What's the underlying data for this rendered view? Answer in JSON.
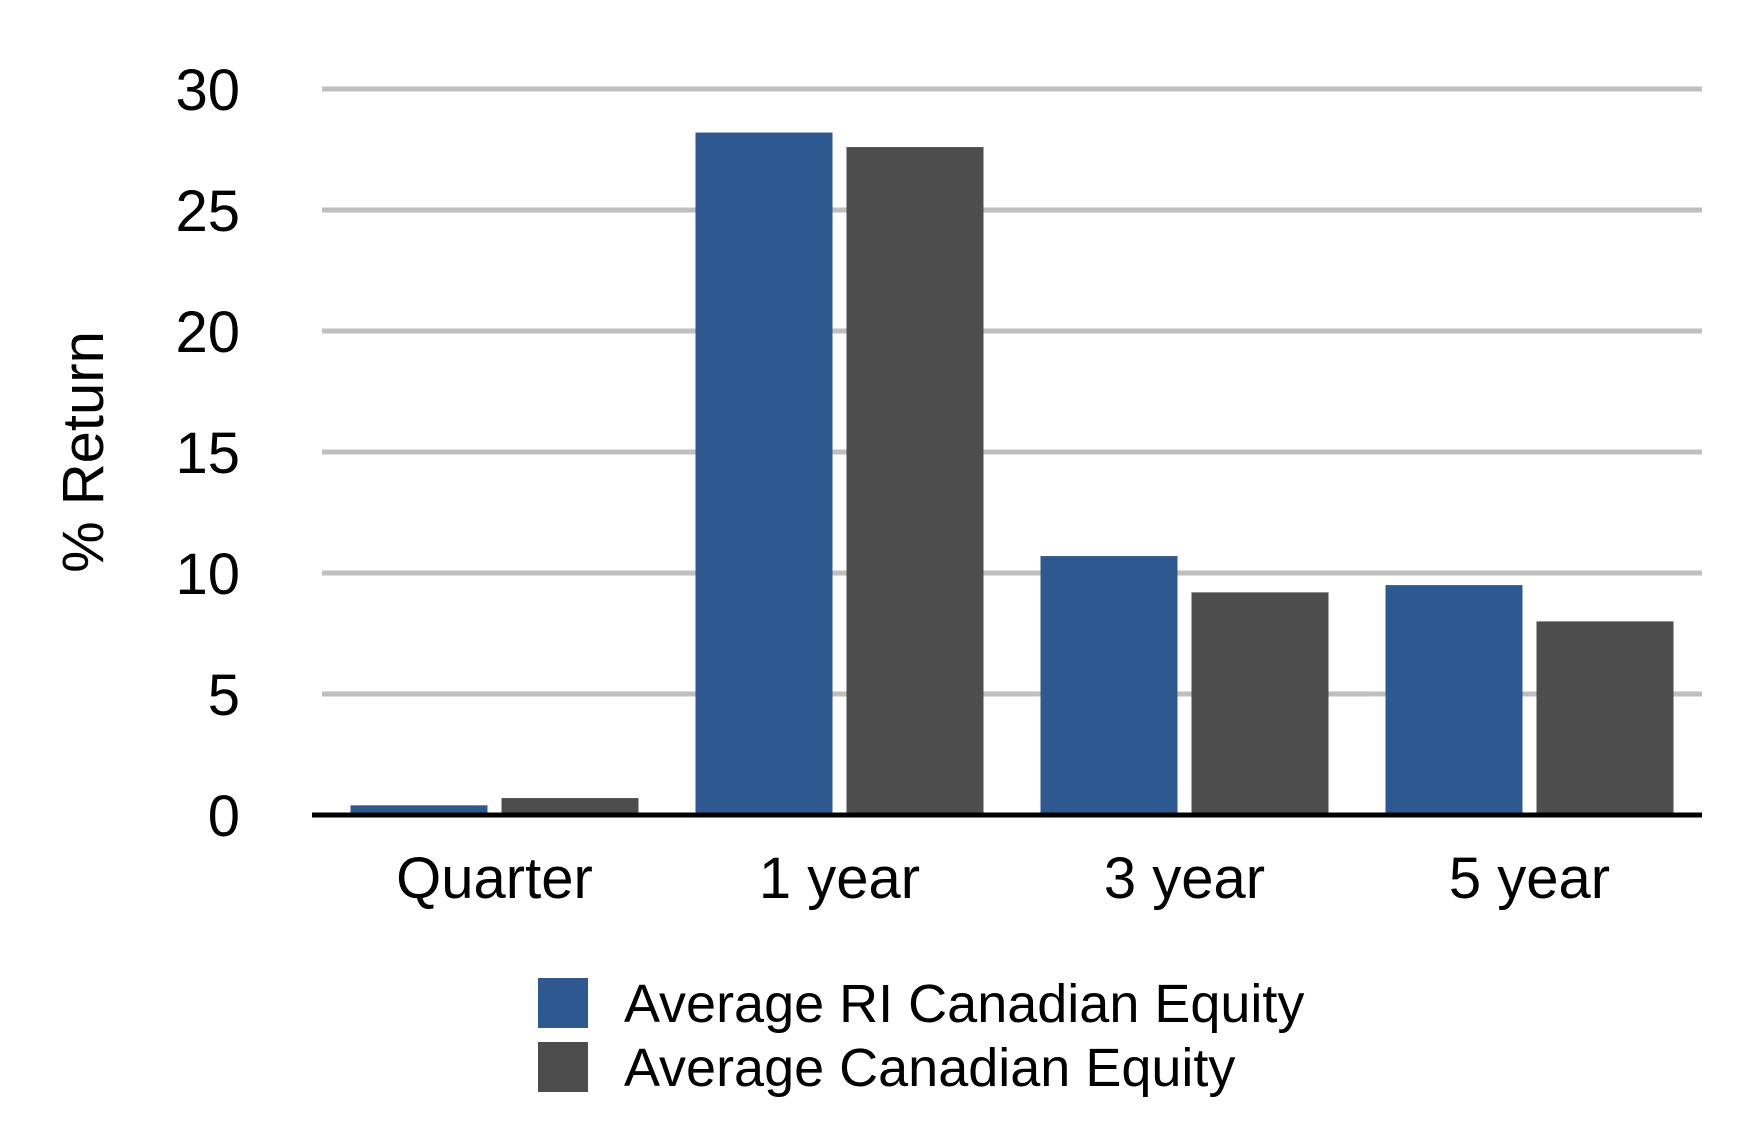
{
  "chart_data": {
    "type": "bar",
    "categories": [
      "Quarter",
      "1 year",
      "3 year",
      "5 year"
    ],
    "series": [
      {
        "name": "Average RI Canadian Equity",
        "values": [
          0.4,
          28.2,
          10.7,
          9.5
        ],
        "color": "#2e5890"
      },
      {
        "name": "Average Canadian Equity",
        "values": [
          0.7,
          27.6,
          9.2,
          8.0
        ],
        "color": "#4d4d4d"
      }
    ],
    "title": "",
    "xlabel": "",
    "ylabel": "% Return",
    "ylim": [
      0,
      30
    ],
    "yticks": [
      "0",
      "5",
      "10",
      "15",
      "20",
      "25",
      "30"
    ],
    "grid": true,
    "legend_position": "bottom-center"
  },
  "colors": {
    "gridline": "#bfbfbf",
    "axis": "#000000"
  }
}
